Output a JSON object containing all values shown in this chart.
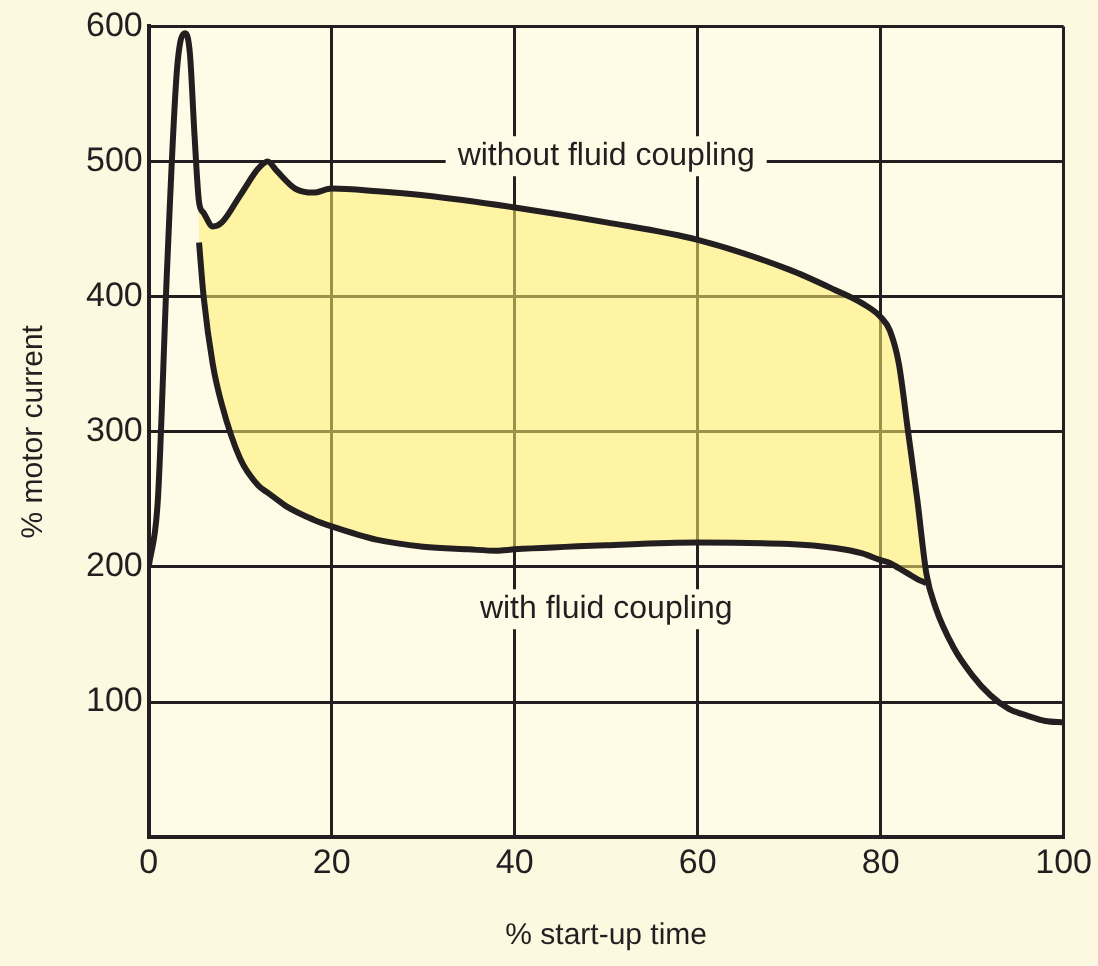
{
  "chart_data": {
    "type": "line",
    "xlabel": "% start-up time",
    "ylabel": "% motor current",
    "xlim": [
      0,
      100
    ],
    "xticks": [
      0,
      20,
      40,
      60,
      80,
      100
    ],
    "ylim": [
      0,
      600
    ],
    "yticks": [
      {
        "value": 0,
        "label": null
      },
      100,
      200,
      300,
      400,
      500,
      600
    ],
    "grid": true,
    "legend": false,
    "marker": "none",
    "line_style": "solid",
    "series": [
      {
        "name": "without fluid coupling",
        "color": "#231f20",
        "x": [
          0,
          1,
          2,
          3,
          3.5,
          4,
          4.5,
          5,
          5.5,
          6,
          7,
          8,
          10,
          12,
          13,
          14,
          16,
          18,
          20,
          25,
          30,
          40,
          50,
          60,
          70,
          75,
          78,
          80,
          81,
          82,
          83,
          84,
          85,
          86,
          88,
          90,
          92,
          94,
          96,
          98,
          100
        ],
        "values": [
          200,
          250,
          420,
          560,
          590,
          595,
          580,
          520,
          470,
          462,
          452,
          455,
          475,
          495,
          500,
          493,
          480,
          477,
          480,
          478,
          475,
          466,
          455,
          442,
          420,
          405,
          395,
          385,
          375,
          350,
          300,
          250,
          195,
          170,
          140,
          120,
          105,
          95,
          90,
          86,
          85
        ]
      },
      {
        "name": "with fluid coupling",
        "color": "#231f20",
        "x": [
          5.5,
          6,
          7,
          8,
          10,
          12,
          13,
          14,
          15,
          18,
          20,
          25,
          30,
          35,
          38,
          40,
          50,
          60,
          70,
          75,
          78,
          80,
          81,
          82,
          83,
          84,
          85
        ],
        "values": [
          440,
          400,
          350,
          320,
          280,
          260,
          255,
          250,
          245,
          235,
          230,
          220,
          215,
          213,
          212,
          213,
          216,
          218,
          217,
          214,
          210,
          205,
          203,
          199,
          195,
          191,
          188
        ],
        "lower": [
          440,
          400,
          350,
          320,
          280,
          260,
          255,
          250,
          245,
          235,
          230,
          220,
          215,
          213,
          212,
          213,
          216,
          218,
          217,
          214,
          210,
          205,
          203,
          199,
          195,
          191,
          188
        ],
        "upper": [
          470,
          462,
          452,
          455,
          475,
          495,
          500,
          493,
          487,
          477,
          480,
          478,
          475,
          470,
          467,
          466,
          455,
          442,
          420,
          405,
          395,
          385,
          375,
          350,
          300,
          250,
          188
        ]
      }
    ]
  }
}
